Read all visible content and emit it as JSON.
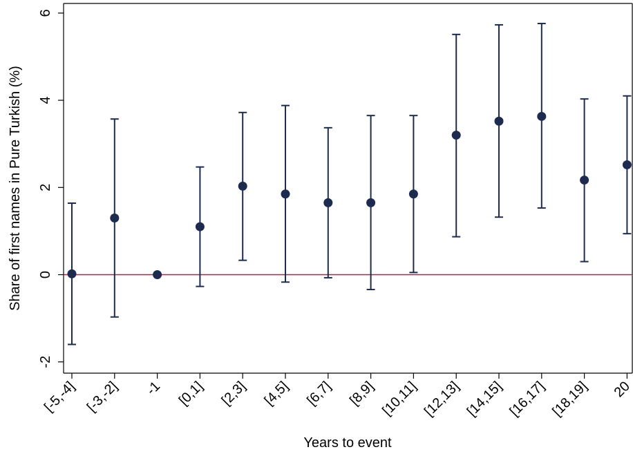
{
  "chart_data": {
    "type": "scatter",
    "title": "",
    "xlabel": "Years to event",
    "ylabel": "Share of first names in Pure Turkish (%)",
    "ylim": [
      -2.3,
      6.2
    ],
    "yticks": [
      -2,
      0,
      2,
      4,
      6
    ],
    "ytick_labels": [
      "-2",
      "0",
      "2",
      "4",
      "6"
    ],
    "categories": [
      "[-5,-4]",
      "[-3,-2]",
      "-1",
      "[0,1]",
      "[2,3]",
      "[4,5]",
      "[6,7]",
      "[8,9]",
      "[10,11]",
      "[12,13]",
      "[14,15]",
      "[16,17]",
      "[18,19]",
      "20"
    ],
    "series": [
      {
        "values": [
          0.02,
          1.3,
          0.0,
          1.1,
          2.03,
          1.85,
          1.65,
          1.65,
          1.85,
          3.2,
          3.52,
          3.63,
          2.17,
          2.52
        ],
        "ci_low": [
          -1.6,
          -0.97,
          0.0,
          -0.27,
          0.33,
          -0.17,
          -0.07,
          -0.34,
          0.05,
          0.87,
          1.32,
          1.53,
          0.3,
          0.94
        ],
        "ci_high": [
          1.64,
          3.57,
          0.0,
          2.47,
          3.72,
          3.88,
          3.37,
          3.65,
          3.65,
          5.51,
          5.73,
          5.76,
          4.03,
          4.1
        ]
      }
    ],
    "reference_line": {
      "y": 0
    },
    "grid": false,
    "legend": "none",
    "colors": {
      "points": "#1c2b4e",
      "reference_line": "#b0204a",
      "axis": "#000000"
    }
  }
}
